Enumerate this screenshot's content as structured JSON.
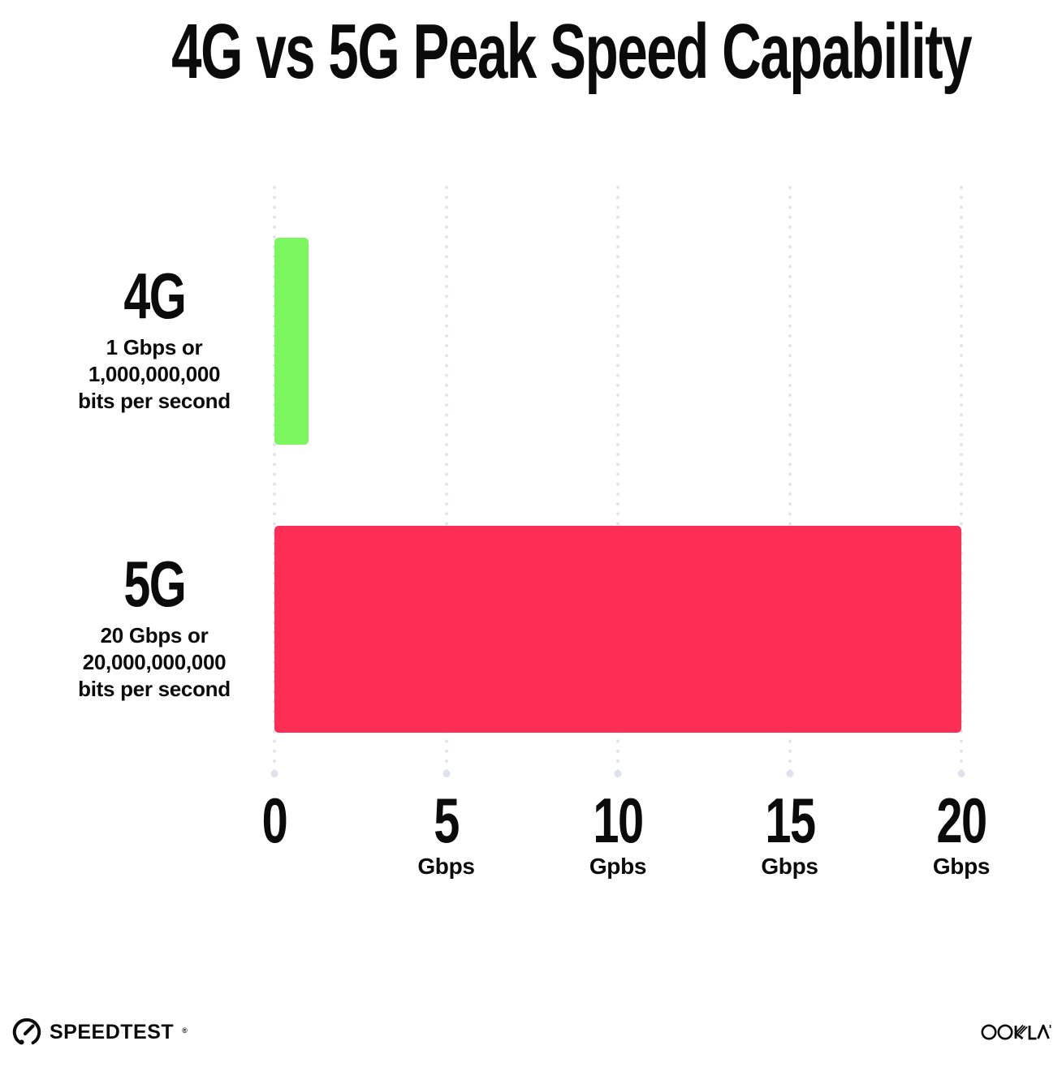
{
  "title": "4G vs 5G Peak Speed Capability",
  "chart_data": {
    "type": "bar",
    "orientation": "horizontal",
    "title": "4G vs 5G Peak Speed Capability",
    "categories": [
      "4G",
      "5G"
    ],
    "values": [
      1,
      20
    ],
    "value_unit": "Gbps",
    "xlim": [
      0,
      20
    ],
    "x_tick_values": [
      0,
      5,
      10,
      15,
      20
    ],
    "x_tick_labels": [
      "0",
      "5 Gbps",
      "10 Gpbs",
      "15 Gbps",
      "20 Gbps"
    ],
    "bar_colors": [
      "#7DF75F",
      "#FD2E55"
    ],
    "grid": "dotted vertical gridlines at each tick",
    "legend": "none",
    "annotations": [
      "4G: 1 Gbps or 1,000,000,000 bits per second",
      "5G: 20 Gbps or 20,000,000,000 bits per second"
    ]
  },
  "rows": [
    {
      "name": "4G",
      "desc_line1": "1 Gbps or",
      "desc_line2": "1,000,000,000",
      "desc_line3": "bits per second"
    },
    {
      "name": "5G",
      "desc_line1": "20 Gbps or",
      "desc_line2": "20,000,000,000",
      "desc_line3": "bits per second"
    }
  ],
  "x_axis": {
    "ticks": [
      {
        "number": "0",
        "unit": ""
      },
      {
        "number": "5",
        "unit": "Gbps"
      },
      {
        "number": "10",
        "unit": "Gpbs"
      },
      {
        "number": "15",
        "unit": "Gbps"
      },
      {
        "number": "20",
        "unit": "Gbps"
      }
    ]
  },
  "footer": {
    "speedtest_text": "SPEEDTEST",
    "speedtest_mark": "®",
    "ookla_text": "OOKLA",
    "ookla_mark": "™"
  },
  "colors": {
    "bar_4g": "#7DF75F",
    "bar_5g": "#FD2E55",
    "grid_dot": "#E1E3EF",
    "text": "#0B0B0C",
    "background": "#FFFFFF"
  }
}
